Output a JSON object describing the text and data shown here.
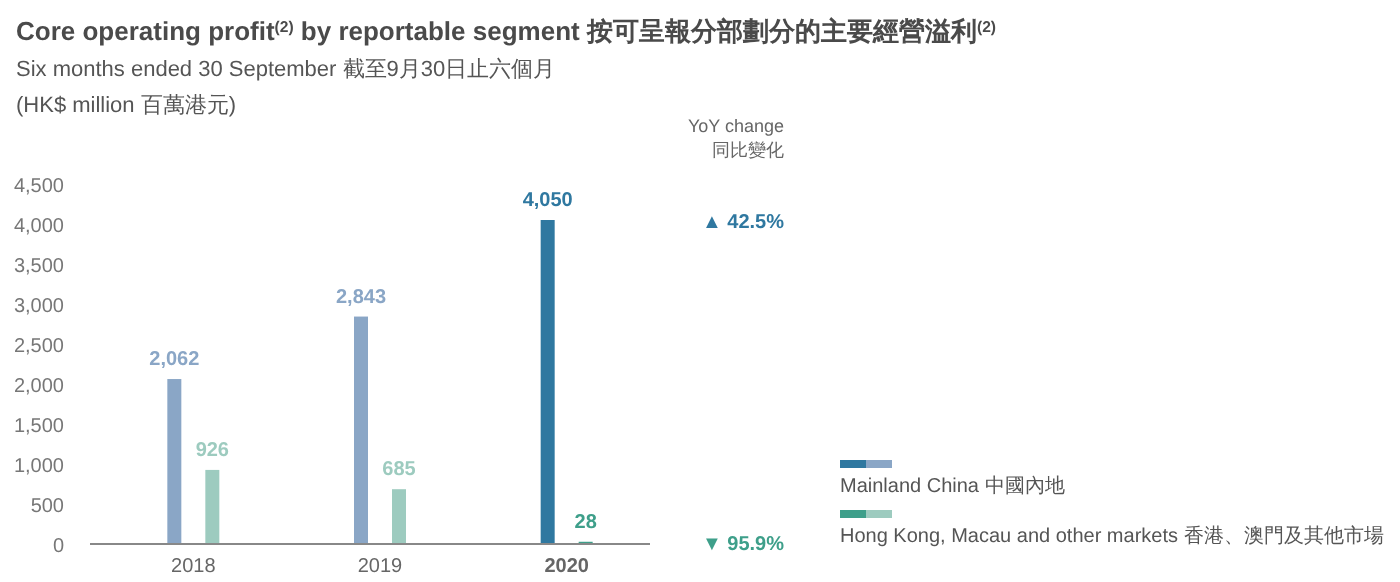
{
  "chart_data": {
    "type": "bar",
    "title": "Core operating profit$^{(2)}$ by reportable segment   按可呈報分部劃分的主要經營溢利$^{(2)}$",
    "subtitle": "Six months ended 30 September 截至9月30日止六個月",
    "ylabel": "(HK$ million 百萬港元)",
    "categories": [
      "2018",
      "2019",
      "2020"
    ],
    "series": [
      {
        "name": "Mainland China 中國內地",
        "color": "#2f78a0",
        "colors": [
          "#8aa6c6",
          "#8aa6c6",
          "#2f78a0"
        ],
        "values": [
          2062,
          2843,
          4050
        ],
        "value_labels": [
          "2,062",
          "2,843",
          "4,050"
        ]
      },
      {
        "name": "Hong Kong, Macau and other markets 香港、澳門及其他市場",
        "color": "#3e9f8a",
        "colors": [
          "#9dcbbf",
          "#9dcbbf",
          "#3e9f8a"
        ],
        "values": [
          926,
          685,
          28
        ],
        "value_labels": [
          "926",
          "685",
          "28"
        ]
      }
    ],
    "ylim": [
      0,
      4500
    ],
    "yticks": [
      0,
      500,
      {
        "value": 1000,
        "label": "1,000"
      },
      {
        "value": 1500,
        "label": "1,500"
      },
      {
        "value": 2000,
        "label": "2,000"
      },
      {
        "value": 2500,
        "label": "2,500"
      },
      {
        "value": 3000,
        "label": "3,000"
      },
      {
        "value": 3500,
        "label": "3,500"
      },
      {
        "value": 4000,
        "label": "4,000"
      },
      {
        "value": 4500,
        "label": "4,500"
      }
    ],
    "grid": false,
    "legend": "bottom right",
    "annotations": [
      "YoY change 同比變化",
      "▲ 42.5%",
      "▼ 95.9%"
    ]
  }
}
